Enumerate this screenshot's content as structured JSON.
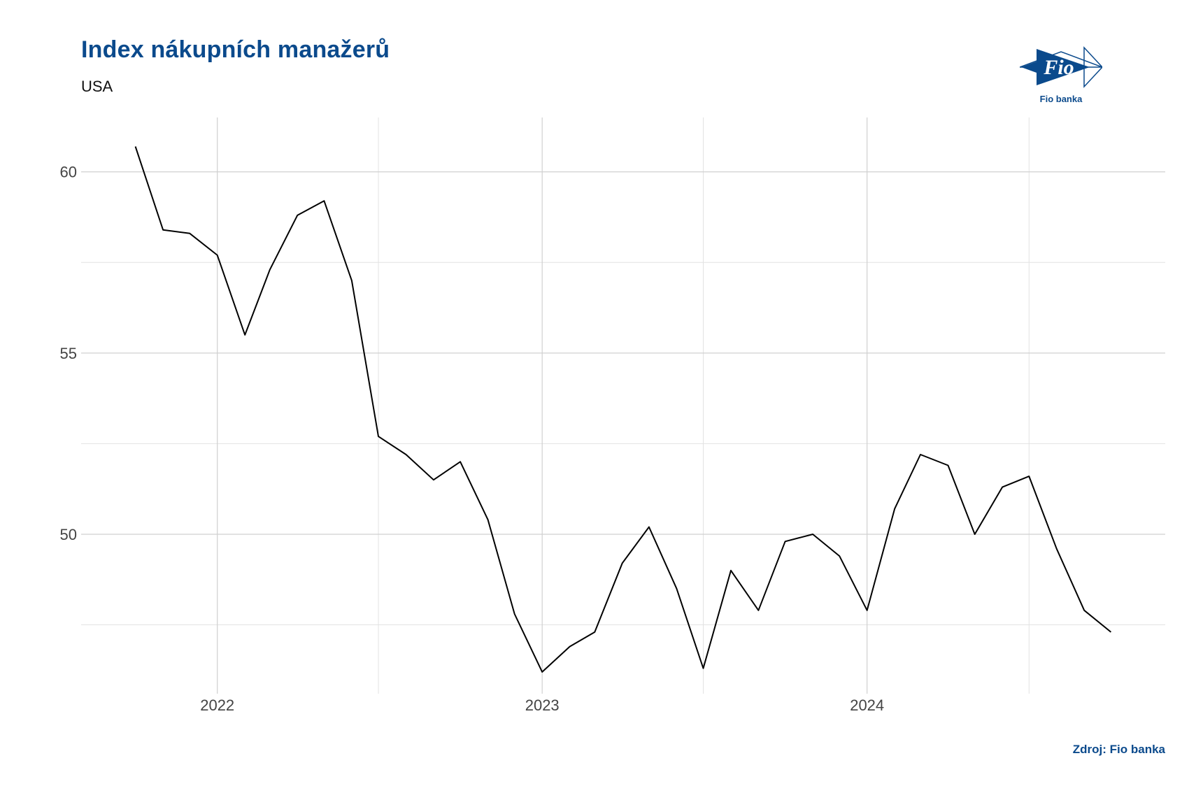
{
  "header": {
    "title": "Index nákupních manažerů",
    "subtitle": "USA"
  },
  "logo": {
    "mark_text": "Fio",
    "caption": "Fio banka",
    "color": "#0b4a8c"
  },
  "footer": {
    "source": "Zdroj: Fio banka"
  },
  "chart_data": {
    "type": "line",
    "title": "Index nákupních manažerů",
    "subtitle": "USA",
    "xlabel": "",
    "ylabel": "",
    "x_ticks": [
      "2022",
      "2023",
      "2024"
    ],
    "y_ticks": [
      50,
      55,
      60
    ],
    "ylim": [
      45.6,
      61.5
    ],
    "xlim": [
      "2021-08-01",
      "2024-12-01"
    ],
    "grid": true,
    "line_color": "#000000",
    "series": [
      {
        "x": [
          "2021-10-01",
          "2021-11-01",
          "2021-12-01",
          "2022-01-01",
          "2022-02-01",
          "2022-03-01",
          "2022-04-01",
          "2022-05-01",
          "2022-06-01",
          "2022-07-01",
          "2022-08-01",
          "2022-09-01",
          "2022-10-01",
          "2022-11-01",
          "2022-12-01",
          "2023-01-01",
          "2023-02-01",
          "2023-03-01",
          "2023-04-01",
          "2023-05-01",
          "2023-06-01",
          "2023-07-01",
          "2023-08-01",
          "2023-09-01",
          "2023-10-01",
          "2023-11-01",
          "2023-12-01",
          "2024-01-01",
          "2024-02-01",
          "2024-03-01",
          "2024-04-01",
          "2024-05-01",
          "2024-06-01",
          "2024-07-01",
          "2024-08-01",
          "2024-09-01",
          "2024-10-01"
        ],
        "values": [
          60.7,
          58.4,
          58.3,
          57.7,
          55.5,
          57.3,
          58.8,
          59.2,
          57.0,
          52.7,
          52.2,
          51.5,
          52.0,
          50.4,
          47.8,
          46.2,
          46.9,
          47.3,
          49.2,
          50.2,
          48.5,
          46.3,
          49.0,
          47.9,
          49.8,
          50.0,
          49.4,
          47.9,
          50.7,
          52.2,
          51.9,
          50.0,
          51.3,
          51.6,
          49.6,
          47.9,
          47.3
        ]
      }
    ]
  }
}
